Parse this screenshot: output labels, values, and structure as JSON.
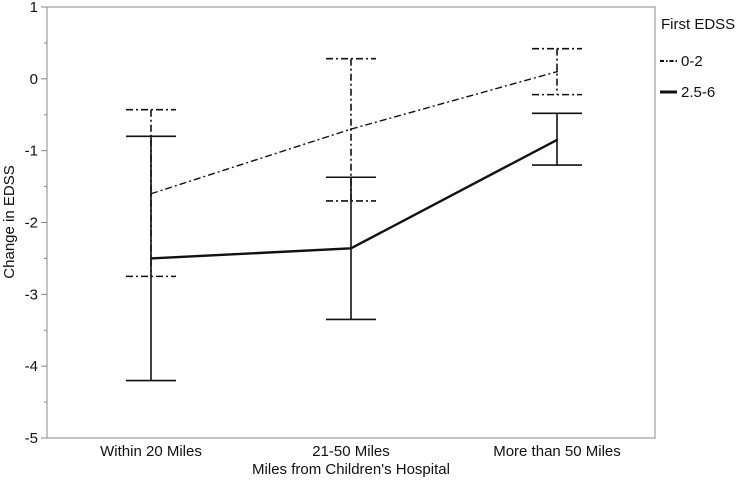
{
  "chart_data": {
    "type": "line",
    "title": "",
    "xlabel": "Miles from Children's Hospital",
    "ylabel": "Change in EDSS",
    "categories": [
      "Within 20 Miles",
      "21-50 Miles",
      "More than 50 Miles"
    ],
    "ylim": [
      -5,
      1
    ],
    "yticks": [
      "1",
      "0",
      "-1",
      "-2",
      "-3",
      "-4",
      "-5"
    ],
    "grid": false,
    "legend": {
      "title": "First EDSS",
      "placement": "right-top"
    },
    "series": [
      {
        "name": "0-2",
        "style": "dash-dot",
        "values": [
          -1.6,
          -0.7,
          0.1
        ],
        "lower": [
          -2.75,
          -1.7,
          -0.22
        ],
        "upper": [
          -0.43,
          0.28,
          0.42
        ]
      },
      {
        "name": "2.5-6",
        "style": "solid",
        "values": [
          -2.5,
          -2.36,
          -0.85
        ],
        "lower": [
          -4.2,
          -3.35,
          -1.2
        ],
        "upper": [
          -0.8,
          -1.37,
          -0.48
        ]
      }
    ],
    "colors": {
      "line": "#111111",
      "frame": "#888888"
    }
  }
}
